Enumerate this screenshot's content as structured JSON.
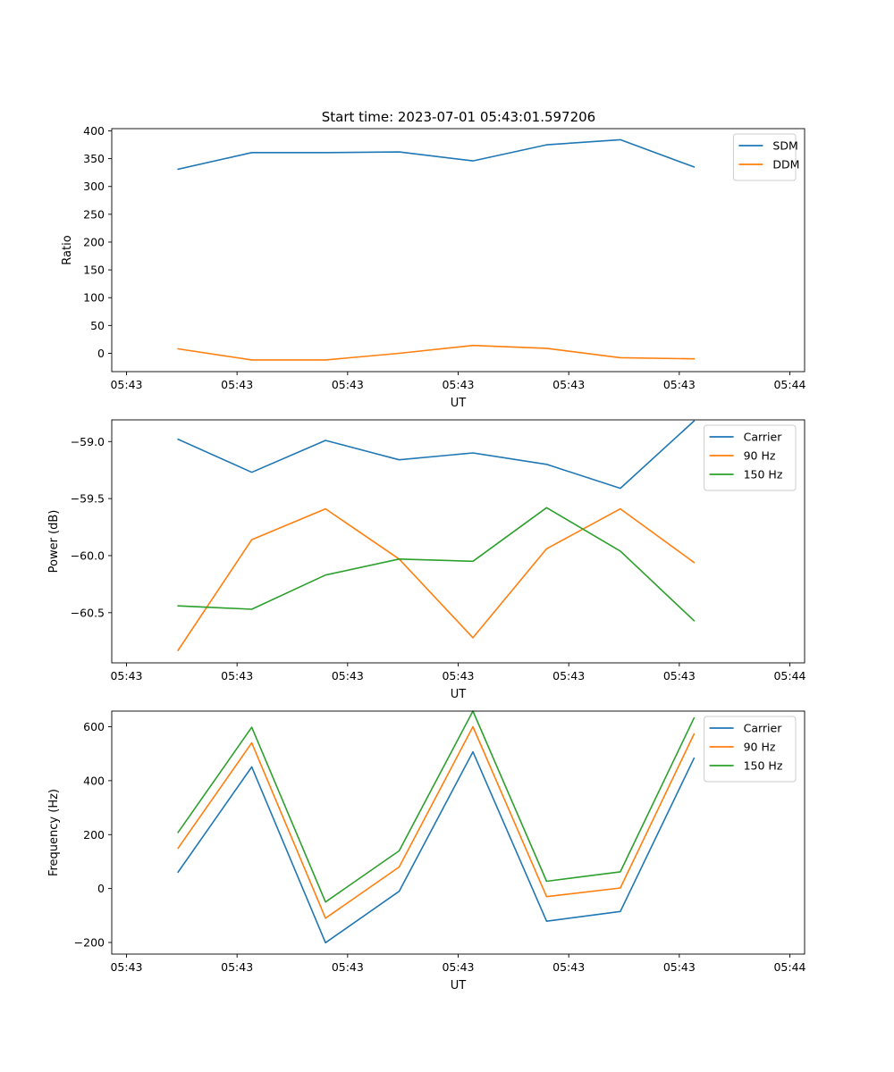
{
  "title": "Start time: 2023-07-01 05:43:01.597206",
  "colors": {
    "blue": "#1f77b4",
    "orange": "#ff7f0e",
    "green": "#2ca02c",
    "axis": "#000000"
  },
  "chart_data": [
    {
      "type": "line",
      "xlabel": "UT",
      "ylabel": "Ratio",
      "xlim": [
        0,
        9.4
      ],
      "ylim": [
        -33,
        404
      ],
      "xticks": [
        0.2,
        1.7,
        3.2,
        4.7,
        6.2,
        7.7,
        9.2
      ],
      "xticklabels": [
        "05:43",
        "05:43",
        "05:43",
        "05:43",
        "05:43",
        "05:43",
        "05:44"
      ],
      "yticks": [
        0,
        50,
        100,
        150,
        200,
        250,
        300,
        350,
        400
      ],
      "yticklabels": [
        "0",
        "50",
        "100",
        "150",
        "200",
        "250",
        "300",
        "350",
        "400"
      ],
      "x": [
        0.9,
        1.9,
        2.9,
        3.9,
        4.9,
        5.9,
        6.9,
        7.9
      ],
      "legend": "top-right",
      "series": [
        {
          "name": "SDM",
          "color": "#1f77b4",
          "values": [
            331,
            361,
            361,
            362,
            346,
            375,
            384,
            335
          ]
        },
        {
          "name": "DDM",
          "color": "#ff7f0e",
          "values": [
            8,
            -12,
            -12,
            0,
            14,
            9,
            -8,
            -10
          ]
        }
      ]
    },
    {
      "type": "line",
      "xlabel": "UT",
      "ylabel": "Power (dB)",
      "xlim": [
        0,
        9.4
      ],
      "ylim": [
        -60.94,
        -58.81
      ],
      "xticks": [
        0.2,
        1.7,
        3.2,
        4.7,
        6.2,
        7.7,
        9.2
      ],
      "xticklabels": [
        "05:43",
        "05:43",
        "05:43",
        "05:43",
        "05:43",
        "05:43",
        "05:44"
      ],
      "yticks": [
        -59.0,
        -59.5,
        -60.0,
        -60.5
      ],
      "yticklabels": [
        "−59.0",
        "−59.5",
        "−60.0",
        "−60.5"
      ],
      "x": [
        0.9,
        1.9,
        2.9,
        3.9,
        4.9,
        5.9,
        6.9,
        7.9
      ],
      "legend": "top-right",
      "series": [
        {
          "name": "Carrier",
          "color": "#1f77b4",
          "values": [
            -58.98,
            -59.27,
            -58.99,
            -59.16,
            -59.1,
            -59.2,
            -59.41,
            -58.82
          ]
        },
        {
          "name": "90 Hz",
          "color": "#ff7f0e",
          "values": [
            -60.83,
            -59.86,
            -59.59,
            -60.03,
            -60.72,
            -59.94,
            -59.59,
            -60.06
          ]
        },
        {
          "name": "150 Hz",
          "color": "#2ca02c",
          "values": [
            -60.44,
            -60.47,
            -60.17,
            -60.03,
            -60.05,
            -59.58,
            -59.96,
            -60.57
          ]
        }
      ]
    },
    {
      "type": "line",
      "xlabel": "UT",
      "ylabel": "Frequency (Hz)",
      "xlim": [
        0,
        9.4
      ],
      "ylim": [
        -243,
        658
      ],
      "xticks": [
        0.2,
        1.7,
        3.2,
        4.7,
        6.2,
        7.7,
        9.2
      ],
      "xticklabels": [
        "05:43",
        "05:43",
        "05:43",
        "05:43",
        "05:43",
        "05:43",
        "05:44"
      ],
      "yticks": [
        -200,
        0,
        200,
        400,
        600
      ],
      "yticklabels": [
        "−200",
        "0",
        "200",
        "400",
        "600"
      ],
      "x": [
        0.9,
        1.9,
        2.9,
        3.9,
        4.9,
        5.9,
        6.9,
        7.9
      ],
      "legend": "top-right",
      "series": [
        {
          "name": "Carrier",
          "color": "#1f77b4",
          "values": [
            61,
            451,
            -201,
            -10,
            507,
            -121,
            -85,
            483
          ]
        },
        {
          "name": "90 Hz",
          "color": "#ff7f0e",
          "values": [
            150,
            540,
            -110,
            80,
            600,
            -30,
            2,
            573
          ]
        },
        {
          "name": "150 Hz",
          "color": "#2ca02c",
          "values": [
            208,
            598,
            -50,
            140,
            658,
            27,
            62,
            632
          ]
        }
      ]
    }
  ]
}
